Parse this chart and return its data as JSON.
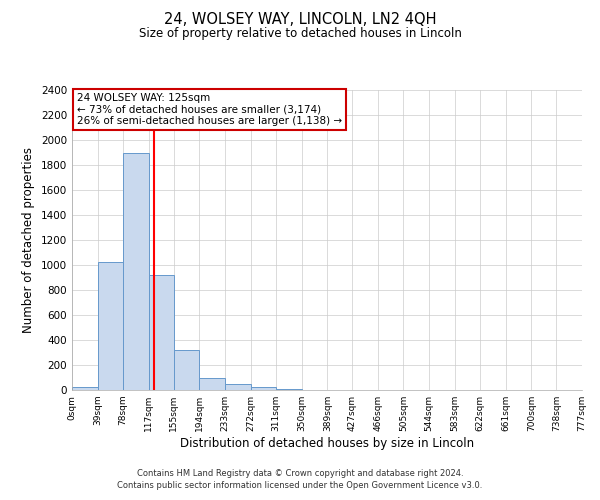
{
  "title": "24, WOLSEY WAY, LINCOLN, LN2 4QH",
  "subtitle": "Size of property relative to detached houses in Lincoln",
  "xlabel": "Distribution of detached houses by size in Lincoln",
  "ylabel": "Number of detached properties",
  "bar_edges": [
    0,
    39,
    78,
    117,
    155,
    194,
    233,
    272,
    311,
    350,
    389,
    427,
    466,
    505,
    544,
    583,
    622,
    661,
    700,
    738,
    777
  ],
  "bar_heights": [
    25,
    1025,
    1900,
    920,
    320,
    100,
    50,
    25,
    10,
    0,
    0,
    0,
    0,
    0,
    0,
    0,
    0,
    0,
    0,
    0
  ],
  "bar_color": "#c9d9ee",
  "bar_edge_color": "#6699cc",
  "red_line_x": 125,
  "ylim": [
    0,
    2400
  ],
  "yticks": [
    0,
    200,
    400,
    600,
    800,
    1000,
    1200,
    1400,
    1600,
    1800,
    2000,
    2200,
    2400
  ],
  "annotation_title": "24 WOLSEY WAY: 125sqm",
  "annotation_line1": "← 73% of detached houses are smaller (3,174)",
  "annotation_line2": "26% of semi-detached houses are larger (1,138) →",
  "annotation_box_color": "#ffffff",
  "annotation_box_edge": "#cc0000",
  "footer_line1": "Contains HM Land Registry data © Crown copyright and database right 2024.",
  "footer_line2": "Contains public sector information licensed under the Open Government Licence v3.0.",
  "background_color": "#ffffff",
  "plot_bg_color": "#ffffff",
  "grid_color": "#cccccc",
  "tick_labels": [
    "0sqm",
    "39sqm",
    "78sqm",
    "117sqm",
    "155sqm",
    "194sqm",
    "233sqm",
    "272sqm",
    "311sqm",
    "350sqm",
    "389sqm",
    "427sqm",
    "466sqm",
    "505sqm",
    "544sqm",
    "583sqm",
    "622sqm",
    "661sqm",
    "700sqm",
    "738sqm",
    "777sqm"
  ]
}
